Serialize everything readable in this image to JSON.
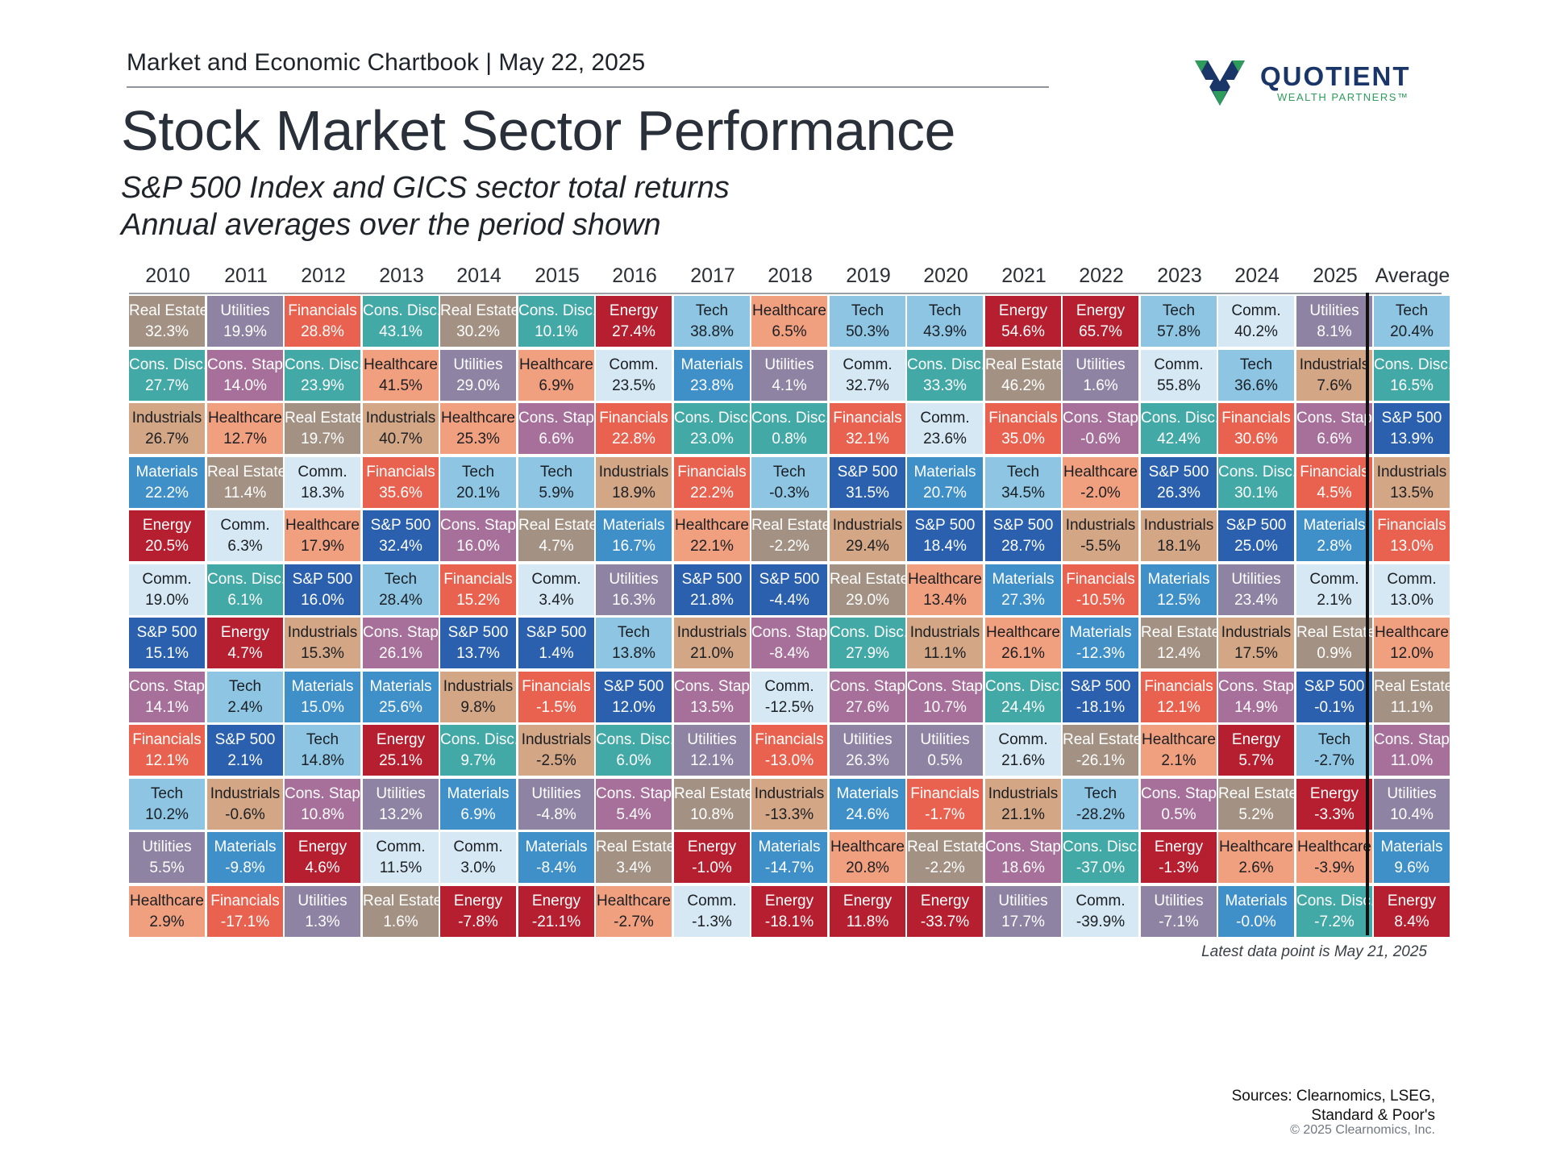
{
  "header": {
    "chartbook": "Market and Economic Chartbook | May 22, 2025",
    "title": "Stock Market Sector Performance",
    "subtitle_line1": "S&P 500 Index and GICS sector total returns",
    "subtitle_line2": "Annual averages over the period shown"
  },
  "logo": {
    "name": "QUOTIENT",
    "tagline": "WEALTH PARTNERS™"
  },
  "footnote": "Latest data point is May 21, 2025",
  "sources": {
    "line1": "Sources: Clearnomics, LSEG,",
    "line2": "Standard & Poor's"
  },
  "copyright": "© 2025 Clearnomics, Inc.",
  "colors": {
    "Real Estate": "#a39283",
    "Utilities": "#8e83a3",
    "Financials": "#e8624f",
    "Cons. Disc.": "#42a9a6",
    "Energy": "#b51f2f",
    "Tech": "#8dc5e3",
    "Healthcare": "#f1a07f",
    "Comm.": "#d6e8f3",
    "Industrials": "#d3a685",
    "Cons. Stap.": "#a6709a",
    "Materials": "#3f8fc9",
    "S&P 500": "#2a60ad"
  },
  "text_colors": {
    "Real Estate": "#ffffff",
    "Utilities": "#ffffff",
    "Financials": "#ffffff",
    "Cons. Disc.": "#ffffff",
    "Energy": "#ffffff",
    "Tech": "#1b1f24",
    "Healthcare": "#1b1f24",
    "Comm.": "#1b1f24",
    "Industrials": "#1b1f24",
    "Cons. Stap.": "#ffffff",
    "Materials": "#ffffff",
    "S&P 500": "#ffffff"
  },
  "chart_data": {
    "type": "table",
    "title": "Stock Market Sector Performance",
    "columns": [
      "2010",
      "2011",
      "2012",
      "2013",
      "2014",
      "2015",
      "2016",
      "2017",
      "2018",
      "2019",
      "2020",
      "2021",
      "2022",
      "2023",
      "2024",
      "2025",
      "Average"
    ],
    "cells": [
      [
        [
          "Real Estate",
          "32.3%"
        ],
        [
          "Cons. Disc.",
          "27.7%"
        ],
        [
          "Industrials",
          "26.7%"
        ],
        [
          "Materials",
          "22.2%"
        ],
        [
          "Energy",
          "20.5%"
        ],
        [
          "Comm.",
          "19.0%"
        ],
        [
          "S&P 500",
          "15.1%"
        ],
        [
          "Cons. Stap.",
          "14.1%"
        ],
        [
          "Financials",
          "12.1%"
        ],
        [
          "Tech",
          "10.2%"
        ],
        [
          "Utilities",
          "5.5%"
        ],
        [
          "Healthcare",
          "2.9%"
        ]
      ],
      [
        [
          "Utilities",
          "19.9%"
        ],
        [
          "Cons. Stap.",
          "14.0%"
        ],
        [
          "Healthcare",
          "12.7%"
        ],
        [
          "Real Estate",
          "11.4%"
        ],
        [
          "Comm.",
          "6.3%"
        ],
        [
          "Cons. Disc.",
          "6.1%"
        ],
        [
          "Energy",
          "4.7%"
        ],
        [
          "Tech",
          "2.4%"
        ],
        [
          "S&P 500",
          "2.1%"
        ],
        [
          "Industrials",
          "-0.6%"
        ],
        [
          "Materials",
          "-9.8%"
        ],
        [
          "Financials",
          "-17.1%"
        ]
      ],
      [
        [
          "Financials",
          "28.8%"
        ],
        [
          "Cons. Disc.",
          "23.9%"
        ],
        [
          "Real Estate",
          "19.7%"
        ],
        [
          "Comm.",
          "18.3%"
        ],
        [
          "Healthcare",
          "17.9%"
        ],
        [
          "S&P 500",
          "16.0%"
        ],
        [
          "Industrials",
          "15.3%"
        ],
        [
          "Materials",
          "15.0%"
        ],
        [
          "Tech",
          "14.8%"
        ],
        [
          "Cons. Stap.",
          "10.8%"
        ],
        [
          "Energy",
          "4.6%"
        ],
        [
          "Utilities",
          "1.3%"
        ]
      ],
      [
        [
          "Cons. Disc.",
          "43.1%"
        ],
        [
          "Healthcare",
          "41.5%"
        ],
        [
          "Industrials",
          "40.7%"
        ],
        [
          "Financials",
          "35.6%"
        ],
        [
          "S&P 500",
          "32.4%"
        ],
        [
          "Tech",
          "28.4%"
        ],
        [
          "Cons. Stap.",
          "26.1%"
        ],
        [
          "Materials",
          "25.6%"
        ],
        [
          "Energy",
          "25.1%"
        ],
        [
          "Utilities",
          "13.2%"
        ],
        [
          "Comm.",
          "11.5%"
        ],
        [
          "Real Estate",
          "1.6%"
        ]
      ],
      [
        [
          "Real Estate",
          "30.2%"
        ],
        [
          "Utilities",
          "29.0%"
        ],
        [
          "Healthcare",
          "25.3%"
        ],
        [
          "Tech",
          "20.1%"
        ],
        [
          "Cons. Stap.",
          "16.0%"
        ],
        [
          "Financials",
          "15.2%"
        ],
        [
          "S&P 500",
          "13.7%"
        ],
        [
          "Industrials",
          "9.8%"
        ],
        [
          "Cons. Disc.",
          "9.7%"
        ],
        [
          "Materials",
          "6.9%"
        ],
        [
          "Comm.",
          "3.0%"
        ],
        [
          "Energy",
          "-7.8%"
        ]
      ],
      [
        [
          "Cons. Disc.",
          "10.1%"
        ],
        [
          "Healthcare",
          "6.9%"
        ],
        [
          "Cons. Stap.",
          "6.6%"
        ],
        [
          "Tech",
          "5.9%"
        ],
        [
          "Real Estate",
          "4.7%"
        ],
        [
          "Comm.",
          "3.4%"
        ],
        [
          "S&P 500",
          "1.4%"
        ],
        [
          "Financials",
          "-1.5%"
        ],
        [
          "Industrials",
          "-2.5%"
        ],
        [
          "Utilities",
          "-4.8%"
        ],
        [
          "Materials",
          "-8.4%"
        ],
        [
          "Energy",
          "-21.1%"
        ]
      ],
      [
        [
          "Energy",
          "27.4%"
        ],
        [
          "Comm.",
          "23.5%"
        ],
        [
          "Financials",
          "22.8%"
        ],
        [
          "Industrials",
          "18.9%"
        ],
        [
          "Materials",
          "16.7%"
        ],
        [
          "Utilities",
          "16.3%"
        ],
        [
          "Tech",
          "13.8%"
        ],
        [
          "S&P 500",
          "12.0%"
        ],
        [
          "Cons. Disc.",
          "6.0%"
        ],
        [
          "Cons. Stap.",
          "5.4%"
        ],
        [
          "Real Estate",
          "3.4%"
        ],
        [
          "Healthcare",
          "-2.7%"
        ]
      ],
      [
        [
          "Tech",
          "38.8%"
        ],
        [
          "Materials",
          "23.8%"
        ],
        [
          "Cons. Disc.",
          "23.0%"
        ],
        [
          "Financials",
          "22.2%"
        ],
        [
          "Healthcare",
          "22.1%"
        ],
        [
          "S&P 500",
          "21.8%"
        ],
        [
          "Industrials",
          "21.0%"
        ],
        [
          "Cons. Stap.",
          "13.5%"
        ],
        [
          "Utilities",
          "12.1%"
        ],
        [
          "Real Estate",
          "10.8%"
        ],
        [
          "Energy",
          "-1.0%"
        ],
        [
          "Comm.",
          "-1.3%"
        ]
      ],
      [
        [
          "Healthcare",
          "6.5%"
        ],
        [
          "Utilities",
          "4.1%"
        ],
        [
          "Cons. Disc.",
          "0.8%"
        ],
        [
          "Tech",
          "-0.3%"
        ],
        [
          "Real Estate",
          "-2.2%"
        ],
        [
          "S&P 500",
          "-4.4%"
        ],
        [
          "Cons. Stap.",
          "-8.4%"
        ],
        [
          "Comm.",
          "-12.5%"
        ],
        [
          "Financials",
          "-13.0%"
        ],
        [
          "Industrials",
          "-13.3%"
        ],
        [
          "Materials",
          "-14.7%"
        ],
        [
          "Energy",
          "-18.1%"
        ]
      ],
      [
        [
          "Tech",
          "50.3%"
        ],
        [
          "Comm.",
          "32.7%"
        ],
        [
          "Financials",
          "32.1%"
        ],
        [
          "S&P 500",
          "31.5%"
        ],
        [
          "Industrials",
          "29.4%"
        ],
        [
          "Real Estate",
          "29.0%"
        ],
        [
          "Cons. Disc.",
          "27.9%"
        ],
        [
          "Cons. Stap.",
          "27.6%"
        ],
        [
          "Utilities",
          "26.3%"
        ],
        [
          "Materials",
          "24.6%"
        ],
        [
          "Healthcare",
          "20.8%"
        ],
        [
          "Energy",
          "11.8%"
        ]
      ],
      [
        [
          "Tech",
          "43.9%"
        ],
        [
          "Cons. Disc.",
          "33.3%"
        ],
        [
          "Comm.",
          "23.6%"
        ],
        [
          "Materials",
          "20.7%"
        ],
        [
          "S&P 500",
          "18.4%"
        ],
        [
          "Healthcare",
          "13.4%"
        ],
        [
          "Industrials",
          "11.1%"
        ],
        [
          "Cons. Stap.",
          "10.7%"
        ],
        [
          "Utilities",
          "0.5%"
        ],
        [
          "Financials",
          "-1.7%"
        ],
        [
          "Real Estate",
          "-2.2%"
        ],
        [
          "Energy",
          "-33.7%"
        ]
      ],
      [
        [
          "Energy",
          "54.6%"
        ],
        [
          "Real Estate",
          "46.2%"
        ],
        [
          "Financials",
          "35.0%"
        ],
        [
          "Tech",
          "34.5%"
        ],
        [
          "S&P 500",
          "28.7%"
        ],
        [
          "Materials",
          "27.3%"
        ],
        [
          "Healthcare",
          "26.1%"
        ],
        [
          "Cons. Disc.",
          "24.4%"
        ],
        [
          "Comm.",
          "21.6%"
        ],
        [
          "Industrials",
          "21.1%"
        ],
        [
          "Cons. Stap.",
          "18.6%"
        ],
        [
          "Utilities",
          "17.7%"
        ]
      ],
      [
        [
          "Energy",
          "65.7%"
        ],
        [
          "Utilities",
          "1.6%"
        ],
        [
          "Cons. Stap.",
          "-0.6%"
        ],
        [
          "Healthcare",
          "-2.0%"
        ],
        [
          "Industrials",
          "-5.5%"
        ],
        [
          "Financials",
          "-10.5%"
        ],
        [
          "Materials",
          "-12.3%"
        ],
        [
          "S&P 500",
          "-18.1%"
        ],
        [
          "Real Estate",
          "-26.1%"
        ],
        [
          "Tech",
          "-28.2%"
        ],
        [
          "Cons. Disc.",
          "-37.0%"
        ],
        [
          "Comm.",
          "-39.9%"
        ]
      ],
      [
        [
          "Tech",
          "57.8%"
        ],
        [
          "Comm.",
          "55.8%"
        ],
        [
          "Cons. Disc.",
          "42.4%"
        ],
        [
          "S&P 500",
          "26.3%"
        ],
        [
          "Industrials",
          "18.1%"
        ],
        [
          "Materials",
          "12.5%"
        ],
        [
          "Real Estate",
          "12.4%"
        ],
        [
          "Financials",
          "12.1%"
        ],
        [
          "Healthcare",
          "2.1%"
        ],
        [
          "Cons. Stap.",
          "0.5%"
        ],
        [
          "Energy",
          "-1.3%"
        ],
        [
          "Utilities",
          "-7.1%"
        ]
      ],
      [
        [
          "Comm.",
          "40.2%"
        ],
        [
          "Tech",
          "36.6%"
        ],
        [
          "Financials",
          "30.6%"
        ],
        [
          "Cons. Disc.",
          "30.1%"
        ],
        [
          "S&P 500",
          "25.0%"
        ],
        [
          "Utilities",
          "23.4%"
        ],
        [
          "Industrials",
          "17.5%"
        ],
        [
          "Cons. Stap.",
          "14.9%"
        ],
        [
          "Energy",
          "5.7%"
        ],
        [
          "Real Estate",
          "5.2%"
        ],
        [
          "Healthcare",
          "2.6%"
        ],
        [
          "Materials",
          "-0.0%"
        ]
      ],
      [
        [
          "Utilities",
          "8.1%"
        ],
        [
          "Industrials",
          "7.6%"
        ],
        [
          "Cons. Stap.",
          "6.6%"
        ],
        [
          "Financials",
          "4.5%"
        ],
        [
          "Materials",
          "2.8%"
        ],
        [
          "Comm.",
          "2.1%"
        ],
        [
          "Real Estate",
          "0.9%"
        ],
        [
          "S&P 500",
          "-0.1%"
        ],
        [
          "Tech",
          "-2.7%"
        ],
        [
          "Energy",
          "-3.3%"
        ],
        [
          "Healthcare",
          "-3.9%"
        ],
        [
          "Cons. Disc.",
          "-7.2%"
        ]
      ],
      [
        [
          "Tech",
          "20.4%"
        ],
        [
          "Cons. Disc.",
          "16.5%"
        ],
        [
          "S&P 500",
          "13.9%"
        ],
        [
          "Industrials",
          "13.5%"
        ],
        [
          "Financials",
          "13.0%"
        ],
        [
          "Comm.",
          "13.0%"
        ],
        [
          "Healthcare",
          "12.0%"
        ],
        [
          "Real Estate",
          "11.1%"
        ],
        [
          "Cons. Stap.",
          "11.0%"
        ],
        [
          "Utilities",
          "10.4%"
        ],
        [
          "Materials",
          "9.6%"
        ],
        [
          "Energy",
          "8.4%"
        ]
      ]
    ]
  }
}
